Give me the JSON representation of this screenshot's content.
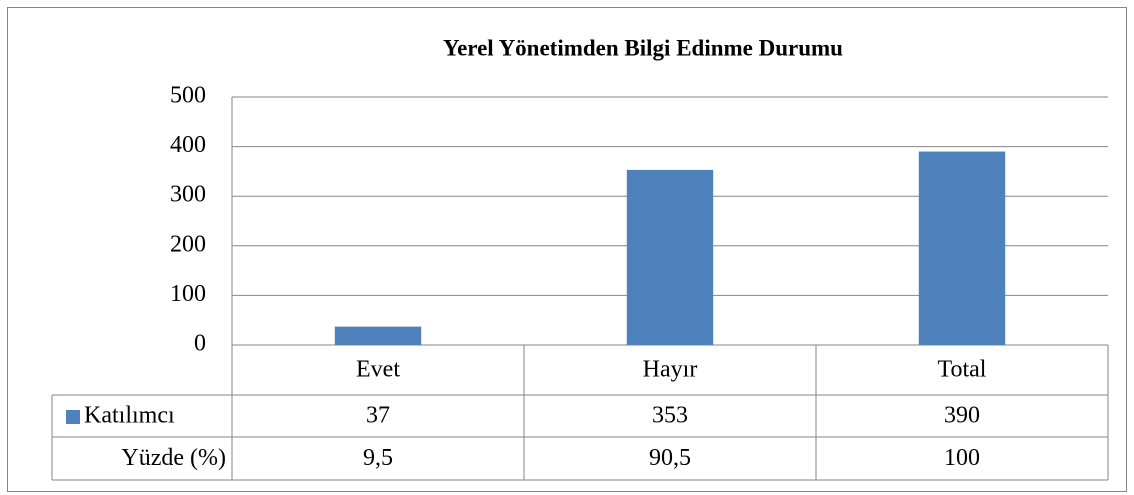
{
  "chart_data": {
    "type": "bar",
    "title": "Yerel Yönetimden Bilgi Edinme Durumu",
    "categories": [
      "Evet",
      "Hayır",
      "Total"
    ],
    "series": [
      {
        "name": "Katılımcı",
        "color": "#4f81bd",
        "values": [
          37,
          353,
          390
        ]
      }
    ],
    "table_rows": [
      {
        "name": "Yüzde (%)",
        "values": [
          "9,5",
          "90,5",
          "100"
        ]
      }
    ],
    "ylim": [
      0,
      500
    ],
    "yticks": [
      0,
      100,
      200,
      300,
      400,
      500
    ],
    "grid": true
  }
}
